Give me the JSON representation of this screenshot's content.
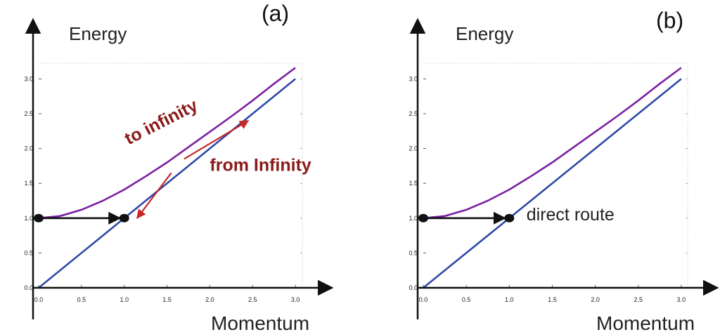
{
  "chart_data": [
    {
      "type": "line",
      "panel_label": "(a)",
      "ylabel": "Energy",
      "xlabel": "Momentum",
      "xlim": [
        0,
        3
      ],
      "ylim": [
        0,
        3.2
      ],
      "x_ticks": [
        "0.0",
        "0.5",
        "1.0",
        "1.5",
        "2.0",
        "2.5",
        "3.0"
      ],
      "y_ticks": [
        "0.0",
        "0.5",
        "1.0",
        "1.5",
        "2.0",
        "2.5",
        "3.0"
      ],
      "series": [
        {
          "color": "#7b1fa2",
          "x": [
            0,
            0.25,
            0.5,
            0.75,
            1.0,
            1.25,
            1.5,
            1.75,
            2.0,
            2.25,
            2.5,
            2.75,
            3.0
          ],
          "y": [
            1.0,
            1.03,
            1.12,
            1.25,
            1.41,
            1.6,
            1.8,
            2.02,
            2.24,
            2.46,
            2.69,
            2.93,
            3.16
          ]
        },
        {
          "color": "#2e4aa8",
          "x": [
            0,
            3.0
          ],
          "y": [
            0,
            3.0
          ]
        }
      ],
      "points": [
        {
          "x": 0,
          "y": 1.0
        },
        {
          "x": 1.0,
          "y": 1.0
        }
      ],
      "arrows": [
        {
          "color": "#111111",
          "from": [
            0,
            1.0
          ],
          "to": [
            0.95,
            1.0
          ]
        },
        {
          "color": "#c62828",
          "from": [
            1.7,
            1.85
          ],
          "to": [
            2.45,
            2.4
          ]
        },
        {
          "color": "#c62828",
          "from": [
            1.55,
            1.65
          ],
          "to": [
            1.15,
            1.0
          ]
        }
      ],
      "annotations": [
        {
          "text": "to infinity",
          "color": "#8b1a1a",
          "x": 1.05,
          "y": 2.05,
          "rotate": -27,
          "size": 25
        },
        {
          "text": "from Infinity",
          "color": "#8b1a1a",
          "x": 2.0,
          "y": 1.68,
          "rotate": 0,
          "size": 25
        }
      ]
    },
    {
      "type": "line",
      "panel_label": "(b)",
      "ylabel": "Energy",
      "xlabel": "Momentum",
      "xlim": [
        0,
        3
      ],
      "ylim": [
        0,
        3.2
      ],
      "x_ticks": [
        "0.0",
        "0.5",
        "1.0",
        "1.5",
        "2.0",
        "2.5",
        "3.0"
      ],
      "y_ticks": [
        "0.0",
        "0.5",
        "1.0",
        "1.5",
        "2.0",
        "2.5",
        "3.0"
      ],
      "series": [
        {
          "color": "#7b1fa2",
          "x": [
            0,
            0.25,
            0.5,
            0.75,
            1.0,
            1.25,
            1.5,
            1.75,
            2.0,
            2.25,
            2.5,
            2.75,
            3.0
          ],
          "y": [
            1.0,
            1.03,
            1.12,
            1.25,
            1.41,
            1.6,
            1.8,
            2.02,
            2.24,
            2.46,
            2.69,
            2.93,
            3.16
          ]
        },
        {
          "color": "#2e4aa8",
          "x": [
            0,
            3.0
          ],
          "y": [
            0,
            3.0
          ]
        }
      ],
      "points": [
        {
          "x": 0,
          "y": 1.0
        },
        {
          "x": 1.0,
          "y": 1.0
        }
      ],
      "arrows": [
        {
          "color": "#111111",
          "from": [
            0,
            1.0
          ],
          "to": [
            0.95,
            1.0
          ]
        }
      ],
      "annotations": [
        {
          "text": "direct route",
          "color": "#222222",
          "x": 1.2,
          "y": 0.97,
          "rotate": 0,
          "size": 25
        }
      ]
    }
  ]
}
